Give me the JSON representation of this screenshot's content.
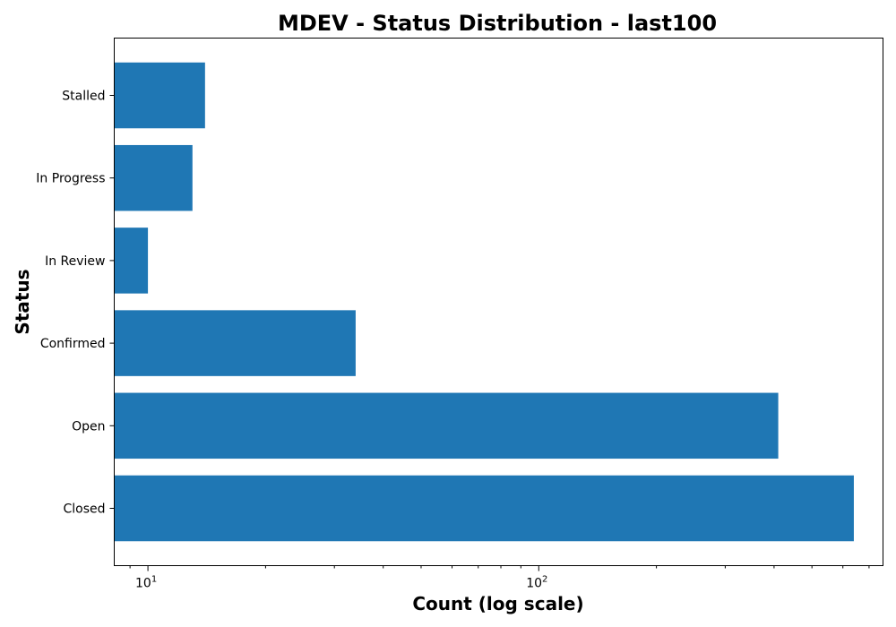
{
  "chart_data": {
    "type": "bar",
    "orientation": "horizontal",
    "title": "MDEV - Status Distribution - last100",
    "xlabel": "Count (log scale)",
    "ylabel": "Status",
    "x_scale": "log",
    "xlim": [
      8.2,
      760
    ],
    "categories": [
      "Closed",
      "Open",
      "Confirmed",
      "In Review",
      "In Progress",
      "Stalled"
    ],
    "values": [
      640,
      410,
      34,
      10,
      13,
      14
    ],
    "x_ticks": [
      {
        "base": "10",
        "exp": "1",
        "value": 10
      },
      {
        "base": "10",
        "exp": "2",
        "value": 100
      }
    ],
    "bar_color": "#1f77b4",
    "grid": false,
    "legend": "none"
  }
}
